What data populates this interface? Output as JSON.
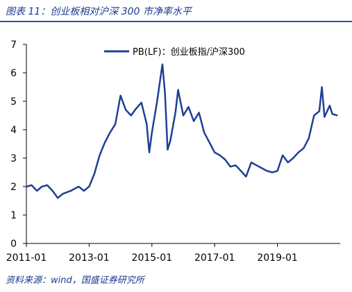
{
  "figure": {
    "title": "图表 11：创业板相对沪深 300 市净率水平",
    "source": "资料来源：wind，国盛证券研究所"
  },
  "colors": {
    "series": "#1f3f95",
    "axis": "#000000"
  },
  "chart_data": {
    "type": "line",
    "title": "",
    "xlabel": "",
    "ylabel": "",
    "ylim": [
      0,
      7
    ],
    "yticks": [
      0,
      1,
      2,
      3,
      4,
      5,
      6,
      7
    ],
    "xlim": [
      "2011-01",
      "2021-01"
    ],
    "xticks": [
      "2011-01",
      "2013-01",
      "2015-01",
      "2017-01",
      "2019-01"
    ],
    "legend_position": "top",
    "grid": false,
    "series": [
      {
        "name": "PB(LF)：创业板指/沪深300",
        "points": [
          [
            "2011-01",
            2.0
          ],
          [
            "2011-03",
            2.05
          ],
          [
            "2011-05",
            1.85
          ],
          [
            "2011-07",
            2.0
          ],
          [
            "2011-09",
            2.05
          ],
          [
            "2011-11",
            1.85
          ],
          [
            "2012-01",
            1.6
          ],
          [
            "2012-03",
            1.75
          ],
          [
            "2012-06",
            1.85
          ],
          [
            "2012-09",
            2.0
          ],
          [
            "2012-11",
            1.85
          ],
          [
            "2013-01",
            2.0
          ],
          [
            "2013-03",
            2.45
          ],
          [
            "2013-05",
            3.1
          ],
          [
            "2013-07",
            3.55
          ],
          [
            "2013-09",
            3.9
          ],
          [
            "2013-11",
            4.2
          ],
          [
            "2014-01",
            5.2
          ],
          [
            "2014-03",
            4.7
          ],
          [
            "2014-05",
            4.5
          ],
          [
            "2014-07",
            4.75
          ],
          [
            "2014-09",
            4.95
          ],
          [
            "2014-11",
            4.2
          ],
          [
            "2014-12",
            3.2
          ],
          [
            "2015-01",
            3.9
          ],
          [
            "2015-03",
            5.0
          ],
          [
            "2015-05",
            6.3
          ],
          [
            "2015-06",
            5.3
          ],
          [
            "2015-07",
            3.3
          ],
          [
            "2015-08",
            3.6
          ],
          [
            "2015-10",
            4.6
          ],
          [
            "2015-11",
            5.4
          ],
          [
            "2016-01",
            4.5
          ],
          [
            "2016-03",
            4.8
          ],
          [
            "2016-05",
            4.3
          ],
          [
            "2016-07",
            4.6
          ],
          [
            "2016-09",
            3.9
          ],
          [
            "2016-11",
            3.55
          ],
          [
            "2017-01",
            3.2
          ],
          [
            "2017-03",
            3.1
          ],
          [
            "2017-05",
            2.95
          ],
          [
            "2017-07",
            2.7
          ],
          [
            "2017-09",
            2.75
          ],
          [
            "2017-11",
            2.55
          ],
          [
            "2018-01",
            2.35
          ],
          [
            "2018-03",
            2.85
          ],
          [
            "2018-05",
            2.75
          ],
          [
            "2018-07",
            2.65
          ],
          [
            "2018-09",
            2.55
          ],
          [
            "2018-11",
            2.5
          ],
          [
            "2019-01",
            2.55
          ],
          [
            "2019-03",
            3.1
          ],
          [
            "2019-05",
            2.85
          ],
          [
            "2019-07",
            3.0
          ],
          [
            "2019-09",
            3.2
          ],
          [
            "2019-11",
            3.35
          ],
          [
            "2020-01",
            3.7
          ],
          [
            "2020-03",
            4.5
          ],
          [
            "2020-05",
            4.65
          ],
          [
            "2020-06",
            5.5
          ],
          [
            "2020-07",
            4.45
          ],
          [
            "2020-09",
            4.85
          ],
          [
            "2020-10",
            4.55
          ],
          [
            "2020-12",
            4.5
          ]
        ]
      }
    ]
  }
}
